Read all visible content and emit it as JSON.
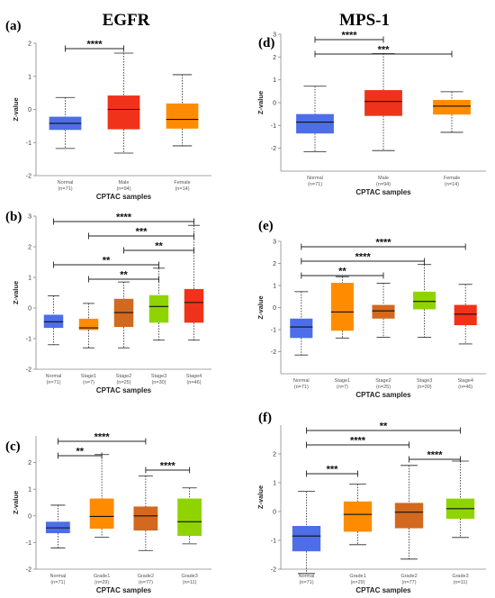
{
  "header": {
    "left_gene": "EGFR",
    "right_gene": "MPS-1"
  },
  "chart_data": [
    {
      "id": "a",
      "panel_label": "(a)",
      "column": "left",
      "row": 0,
      "type": "boxplot",
      "ylabel": "Z-value",
      "xlabel": "CPTAC samples",
      "ylim": [
        -2,
        2
      ],
      "yticks": [
        -2,
        -1,
        0,
        1,
        2
      ],
      "categories": [
        "Normal",
        "Male",
        "Female"
      ],
      "ns": [
        "(n=71)",
        "(n=94)",
        "(n=14)"
      ],
      "colors": [
        "#4d6ee8",
        "#f0321a",
        "#ff8c00"
      ],
      "boxes": [
        {
          "whislo": -1.18,
          "q1": -0.62,
          "med": -0.42,
          "q3": -0.22,
          "whishi": 0.36
        },
        {
          "whislo": -1.32,
          "q1": -0.6,
          "med": 0.0,
          "q3": 0.42,
          "whishi": 1.7
        },
        {
          "whislo": -1.1,
          "q1": -0.58,
          "med": -0.3,
          "q3": 0.18,
          "whishi": 1.05
        }
      ],
      "significance": [
        {
          "from": 0,
          "to": 1,
          "label": "****"
        }
      ]
    },
    {
      "id": "d",
      "panel_label": "(d)",
      "column": "right",
      "row": 0,
      "type": "boxplot",
      "ylabel": "Z-value",
      "xlabel": "CPTAC samples",
      "ylim": [
        -3,
        3
      ],
      "yticks": [
        -2,
        -1,
        0,
        1,
        2,
        3
      ],
      "categories": [
        "Normal",
        "Male",
        "Female"
      ],
      "ns": [
        "(n=71)",
        "(n=94)",
        "(n=14)"
      ],
      "colors": [
        "#4d6ee8",
        "#f0321a",
        "#ff8c00"
      ],
      "boxes": [
        {
          "whislo": -2.15,
          "q1": -1.35,
          "med": -0.85,
          "q3": -0.5,
          "whishi": 0.72
        },
        {
          "whislo": -2.1,
          "q1": -0.58,
          "med": 0.05,
          "q3": 0.55,
          "whishi": 2.15
        },
        {
          "whislo": -1.3,
          "q1": -0.52,
          "med": -0.15,
          "q3": 0.12,
          "whishi": 0.48
        }
      ],
      "significance": [
        {
          "from": 0,
          "to": 1,
          "label": "****"
        },
        {
          "from": 0,
          "to": 2,
          "label": "***"
        }
      ]
    },
    {
      "id": "b",
      "panel_label": "(b)",
      "column": "left",
      "row": 1,
      "type": "boxplot",
      "ylabel": "Z-value",
      "xlabel": "CPTAC samples",
      "ylim": [
        -2,
        3
      ],
      "yticks": [
        -2,
        -1,
        0,
        1,
        2,
        3
      ],
      "categories": [
        "Normal",
        "Stage1",
        "Stage2",
        "Stage3",
        "Stage4"
      ],
      "ns": [
        "(n=71)",
        "(n=7)",
        "(n=25)",
        "(n=30)",
        "(n=46)"
      ],
      "colors": [
        "#4d6ee8",
        "#ff8c00",
        "#d2691e",
        "#8fd400",
        "#f0321a"
      ],
      "boxes": [
        {
          "whislo": -1.2,
          "q1": -0.65,
          "med": -0.45,
          "q3": -0.22,
          "whishi": 0.4
        },
        {
          "whislo": -1.3,
          "q1": -0.72,
          "med": -0.65,
          "q3": -0.35,
          "whishi": 0.15
        },
        {
          "whislo": -1.3,
          "q1": -0.62,
          "med": -0.15,
          "q3": 0.3,
          "whishi": 0.85
        },
        {
          "whislo": -1.05,
          "q1": -0.48,
          "med": 0.05,
          "q3": 0.42,
          "whishi": 1.3
        },
        {
          "whislo": -1.05,
          "q1": -0.48,
          "med": 0.18,
          "q3": 0.62,
          "whishi": 2.7
        }
      ],
      "significance": [
        {
          "from": 0,
          "to": 4,
          "label": "****"
        },
        {
          "from": 1,
          "to": 4,
          "label": "***"
        },
        {
          "from": 2,
          "to": 4,
          "label": "**"
        },
        {
          "from": 0,
          "to": 3,
          "label": "**"
        },
        {
          "from": 1,
          "to": 3,
          "label": "**"
        }
      ]
    },
    {
      "id": "e",
      "panel_label": "(e)",
      "column": "right",
      "row": 1,
      "type": "boxplot",
      "ylabel": "Z-value",
      "xlabel": "CPTAC samples",
      "ylim": [
        -3,
        3
      ],
      "yticks": [
        -2,
        -1,
        0,
        1,
        2,
        3
      ],
      "categories": [
        "Normal",
        "Stage1",
        "Stage2",
        "Stage3",
        "Stage4"
      ],
      "ns": [
        "(n=71)",
        "(n=7)",
        "(n=25)",
        "(n=30)",
        "(n=46)"
      ],
      "colors": [
        "#4d6ee8",
        "#ff8c00",
        "#d2691e",
        "#8fd400",
        "#f0321a"
      ],
      "boxes": [
        {
          "whislo": -2.15,
          "q1": -1.38,
          "med": -0.88,
          "q3": -0.5,
          "whishi": 0.72
        },
        {
          "whislo": -1.38,
          "q1": -1.05,
          "med": -0.2,
          "q3": 1.12,
          "whishi": 1.4
        },
        {
          "whislo": -1.35,
          "q1": -0.5,
          "med": -0.15,
          "q3": 0.12,
          "whishi": 1.1
        },
        {
          "whislo": -1.35,
          "q1": -0.08,
          "med": 0.28,
          "q3": 0.72,
          "whishi": 1.95
        },
        {
          "whislo": -1.65,
          "q1": -0.8,
          "med": -0.3,
          "q3": 0.12,
          "whishi": 1.05
        }
      ],
      "significance": [
        {
          "from": 0,
          "to": 4,
          "label": "****"
        },
        {
          "from": 0,
          "to": 3,
          "label": "****"
        },
        {
          "from": 0,
          "to": 2,
          "label": "**"
        }
      ]
    },
    {
      "id": "c",
      "panel_label": "(c)",
      "column": "left",
      "row": 2,
      "type": "boxplot",
      "ylabel": "Z-value",
      "xlabel": "CPTAC samples",
      "ylim": [
        -2,
        3
      ],
      "yticks": [
        -2,
        -1,
        0,
        1,
        2
      ],
      "categories": [
        "Normal",
        "Grade1",
        "Grade2",
        "Grade3"
      ],
      "ns": [
        "(n=71)",
        "(n=29)",
        "(n=77)",
        "(n=11)"
      ],
      "colors": [
        "#4d6ee8",
        "#ff8c00",
        "#d2691e",
        "#8fd400"
      ],
      "boxes": [
        {
          "whislo": -1.2,
          "q1": -0.65,
          "med": -0.45,
          "q3": -0.22,
          "whishi": 0.4
        },
        {
          "whislo": -0.8,
          "q1": -0.48,
          "med": -0.02,
          "q3": 0.65,
          "whishi": 2.3
        },
        {
          "whislo": -1.3,
          "q1": -0.55,
          "med": 0.0,
          "q3": 0.35,
          "whishi": 1.5
        },
        {
          "whislo": -1.05,
          "q1": -0.75,
          "med": -0.22,
          "q3": 0.65,
          "whishi": 1.05
        }
      ],
      "significance": [
        {
          "from": 0,
          "to": 2,
          "label": "****"
        },
        {
          "from": 0,
          "to": 1,
          "label": "**"
        },
        {
          "from": 2,
          "to": 3,
          "label": "****"
        }
      ]
    },
    {
      "id": "f",
      "panel_label": "(f)",
      "column": "right",
      "row": 2,
      "type": "boxplot",
      "ylabel": "Z-value",
      "xlabel": "CPTAC samples",
      "ylim": [
        -2,
        3
      ],
      "yticks": [
        -2,
        -1,
        0,
        1,
        2
      ],
      "categories": [
        "Normal",
        "Grade1",
        "Grade2",
        "Grade3"
      ],
      "ns": [
        "(n=71)",
        "(n=29)",
        "(n=77)",
        "(n=11)"
      ],
      "colors": [
        "#4d6ee8",
        "#ff8c00",
        "#d2691e",
        "#8fd400"
      ],
      "boxes": [
        {
          "whislo": -2.15,
          "q1": -1.38,
          "med": -0.85,
          "q3": -0.5,
          "whishi": 0.7
        },
        {
          "whislo": -1.15,
          "q1": -0.7,
          "med": -0.1,
          "q3": 0.35,
          "whishi": 0.95
        },
        {
          "whislo": -1.65,
          "q1": -0.58,
          "med": -0.02,
          "q3": 0.3,
          "whishi": 1.6
        },
        {
          "whislo": -0.9,
          "q1": -0.25,
          "med": 0.1,
          "q3": 0.45,
          "whishi": 1.75
        }
      ],
      "significance": [
        {
          "from": 0,
          "to": 3,
          "label": "**"
        },
        {
          "from": 0,
          "to": 2,
          "label": "****"
        },
        {
          "from": 2,
          "to": 3,
          "label": "****"
        },
        {
          "from": 0,
          "to": 1,
          "label": "***"
        }
      ]
    }
  ]
}
